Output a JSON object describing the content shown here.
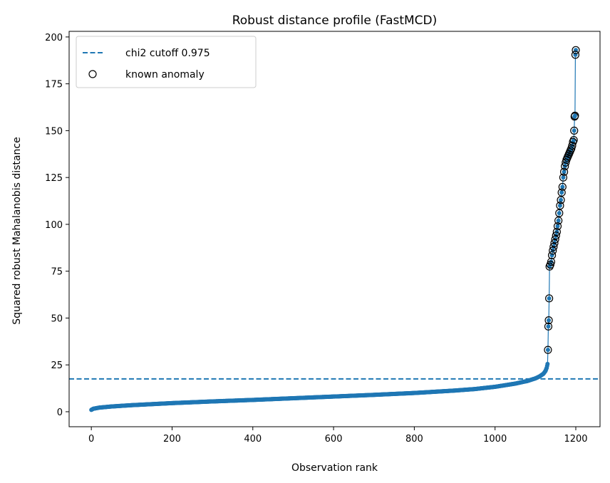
{
  "chart_data": {
    "type": "scatter",
    "title": "Robust distance profile (FastMCD)",
    "xlabel": "Observation rank",
    "ylabel": "Squared robust Mahalanobis distance",
    "xlim": [
      -55,
      1260
    ],
    "ylim": [
      -8,
      203
    ],
    "xticks": [
      0,
      200,
      400,
      600,
      800,
      1000,
      1200
    ],
    "yticks": [
      0,
      25,
      50,
      75,
      100,
      125,
      150,
      175,
      200
    ],
    "grid": false,
    "legend_position": "top-left",
    "colors": {
      "series": "#1f77b4",
      "anomaly_edge": "#000000",
      "axes": "#000000"
    },
    "cutoff": {
      "name": "chi2 cutoff 0.975",
      "value": 17.53
    },
    "anomaly_legend": "known anomaly",
    "n_observations": 1200,
    "profile_knots": [
      [
        0,
        1.0
      ],
      [
        5,
        1.6
      ],
      [
        20,
        2.2
      ],
      [
        50,
        2.8
      ],
      [
        100,
        3.5
      ],
      [
        200,
        4.6
      ],
      [
        300,
        5.5
      ],
      [
        400,
        6.3
      ],
      [
        500,
        7.2
      ],
      [
        600,
        8.1
      ],
      [
        700,
        9.0
      ],
      [
        800,
        10.0
      ],
      [
        900,
        11.3
      ],
      [
        950,
        12.1
      ],
      [
        1000,
        13.3
      ],
      [
        1050,
        15.0
      ],
      [
        1080,
        16.4
      ],
      [
        1100,
        17.8
      ],
      [
        1110,
        18.8
      ],
      [
        1120,
        20.3
      ],
      [
        1125,
        21.8
      ],
      [
        1128,
        23.5
      ],
      [
        1130,
        25.5
      ]
    ],
    "anomalies": [
      [
        1131,
        33.0
      ],
      [
        1132,
        45.5
      ],
      [
        1133,
        48.8
      ],
      [
        1134,
        60.5
      ],
      [
        1135,
        77.5
      ],
      [
        1137,
        78.5
      ],
      [
        1139,
        80.0
      ],
      [
        1141,
        83.5
      ],
      [
        1143,
        86.0
      ],
      [
        1145,
        88.0
      ],
      [
        1147,
        90.0
      ],
      [
        1149,
        92.0
      ],
      [
        1151,
        94.0
      ],
      [
        1153,
        96.0
      ],
      [
        1155,
        99.0
      ],
      [
        1157,
        102.0
      ],
      [
        1159,
        106.0
      ],
      [
        1161,
        110.0
      ],
      [
        1163,
        113.0
      ],
      [
        1165,
        117.0
      ],
      [
        1167,
        120.0
      ],
      [
        1169,
        125.0
      ],
      [
        1171,
        128.0
      ],
      [
        1173,
        131.0
      ],
      [
        1175,
        133.0
      ],
      [
        1177,
        134.5
      ],
      [
        1179,
        135.5
      ],
      [
        1181,
        136.5
      ],
      [
        1183,
        137.5
      ],
      [
        1185,
        138.5
      ],
      [
        1187,
        139.5
      ],
      [
        1189,
        140.5
      ],
      [
        1191,
        142.0
      ],
      [
        1193,
        144.0
      ],
      [
        1195,
        145.0
      ],
      [
        1196,
        150.0
      ],
      [
        1197,
        157.5
      ],
      [
        1198,
        158.0
      ],
      [
        1199,
        190.5
      ],
      [
        1200,
        193.0
      ]
    ]
  }
}
